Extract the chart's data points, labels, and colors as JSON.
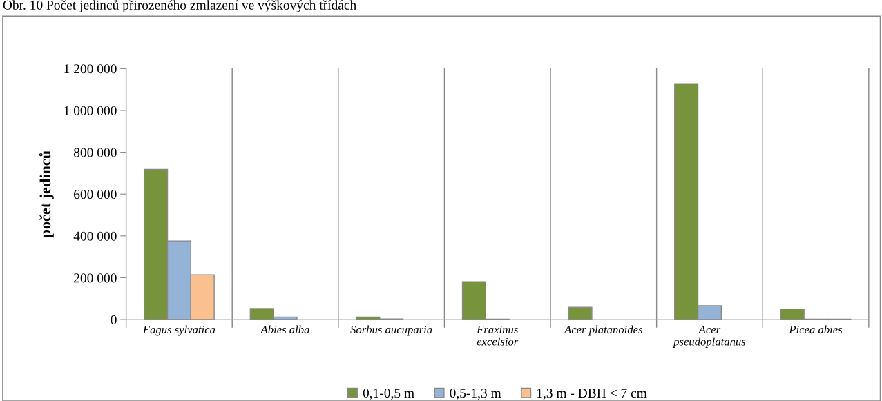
{
  "chart_data": {
    "type": "bar",
    "title": "Obr. 10 Počet jedinců přirozeného zmlazení ve výškových třídách",
    "ylabel": "počet jedinců",
    "categories": [
      "Fagus sylvatica",
      "Abies alba",
      "Sorbus aucuparia",
      "Fraxinus\nexcelsior",
      "Acer platanoides",
      "Acer\npseudoplatanus",
      "Picea abies"
    ],
    "series": [
      {
        "name": "0,1-0,5 m",
        "color": "#77933c",
        "values": [
          718000,
          53000,
          12000,
          181000,
          59000,
          1128000,
          51000
        ]
      },
      {
        "name": "0,5-1,3 m",
        "color": "#95b3d7",
        "values": [
          376000,
          12000,
          3000,
          2000,
          null,
          66000,
          2000
        ]
      },
      {
        "name": "1,3 m - DBH < 7 cm",
        "color": "#fac090",
        "values": [
          214000,
          null,
          null,
          null,
          null,
          null,
          2000
        ]
      }
    ],
    "ylim": [
      0,
      1200000
    ],
    "yticks": [
      {
        "value": 0,
        "label": "0"
      },
      {
        "value": 200000,
        "label": "200 000"
      },
      {
        "value": 400000,
        "label": "400 000"
      },
      {
        "value": 600000,
        "label": "600 000"
      },
      {
        "value": 800000,
        "label": "800 000"
      },
      {
        "value": 1000000,
        "label": "1 000 000"
      },
      {
        "value": 1200000,
        "label": "1 200 000"
      }
    ],
    "grid": "x",
    "legend": "bottom"
  }
}
